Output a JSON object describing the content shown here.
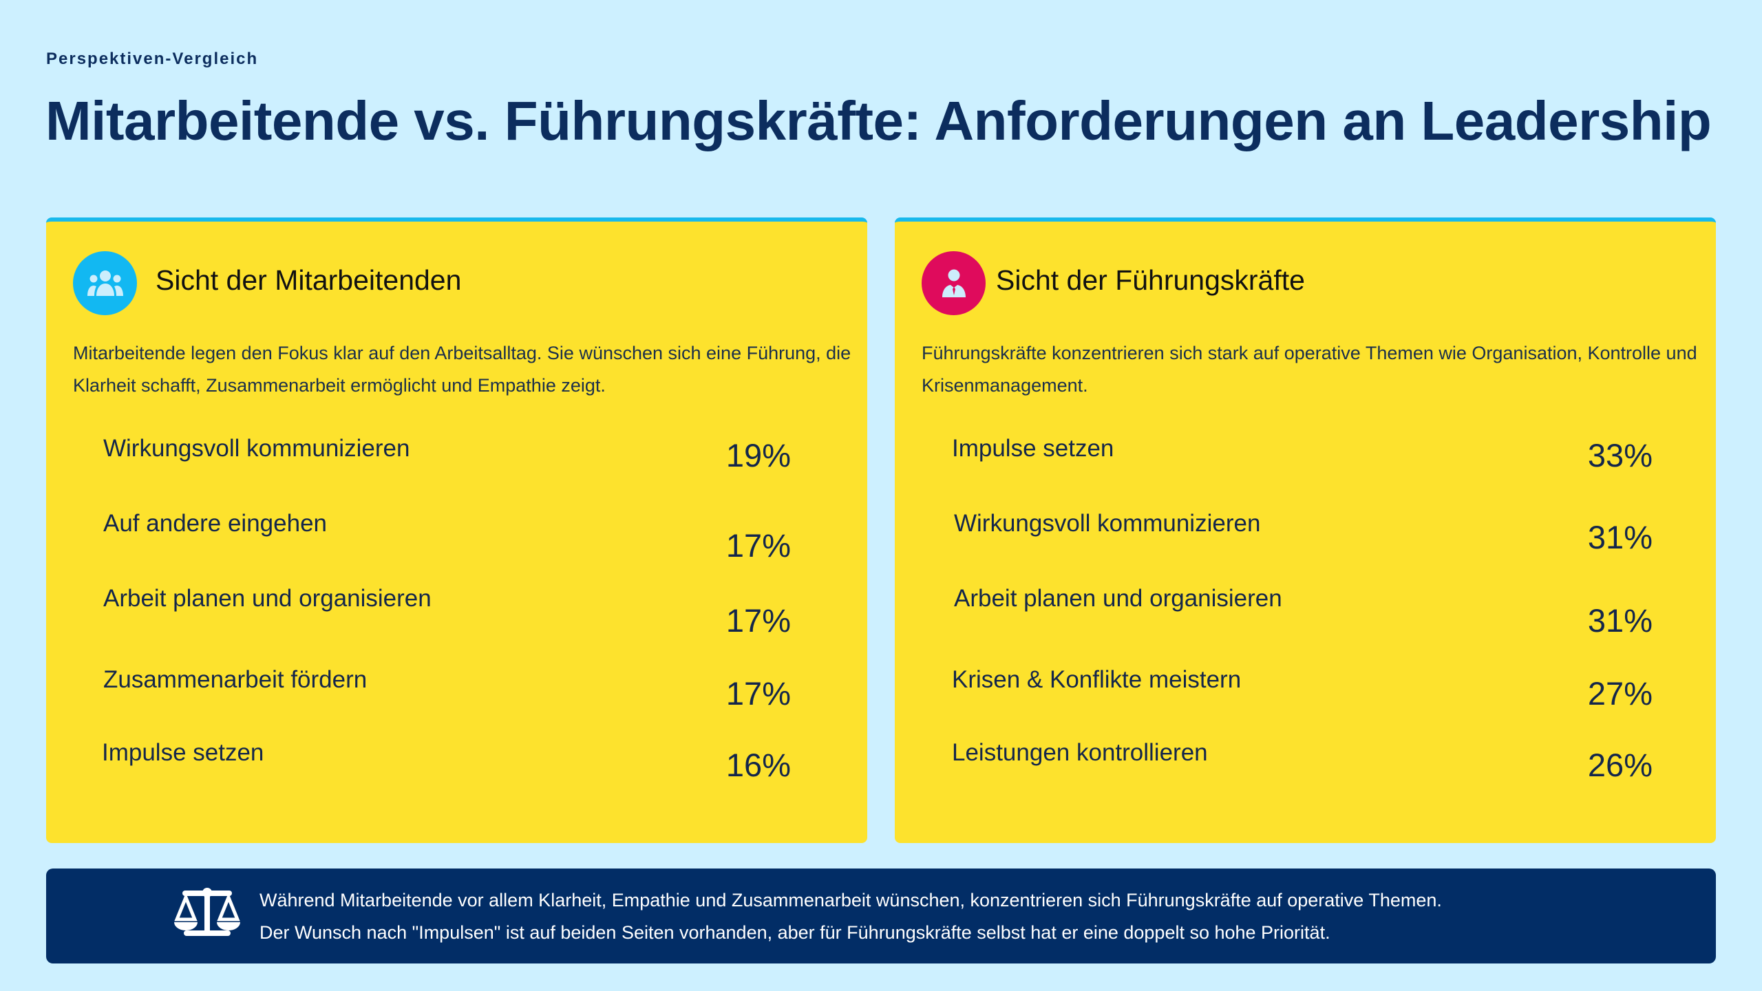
{
  "kicker": "Perspektiven-Vergleich",
  "title": "Mitarbeitende vs. Führungskräfte: Anforderungen an Leadership",
  "colors": {
    "background": "#cdf0ff",
    "card": "#fde22d",
    "card_border": "#19b9ec",
    "employee_icon": "#12b8f2",
    "leader_icon": "#df0b5c",
    "footer": "#022d66",
    "text": "#0c2d5e"
  },
  "employees": {
    "icon": "group-icon",
    "heading": "Sicht der Mitarbeitenden",
    "description": "Mitarbeitende legen den Fokus klar auf den Arbeitsalltag. Sie wünschen sich eine Führung, die Klarheit schafft, Zusammenarbeit ermöglicht und Empathie zeigt.",
    "items": [
      {
        "label": "Wirkungsvoll kommunizieren",
        "value": "19%"
      },
      {
        "label": "Auf andere eingehen",
        "value": "17%"
      },
      {
        "label": "Arbeit planen und organisieren",
        "value": "17%"
      },
      {
        "label": "Zusammenarbeit fördern",
        "value": "17%"
      },
      {
        "label": "Impulse setzen",
        "value": "16%"
      }
    ]
  },
  "leaders": {
    "icon": "businessman-icon",
    "heading": "Sicht der Führungskräfte",
    "description": "Führungskräfte konzentrieren sich stark auf operative Themen wie Organisation, Kontrolle und Krisenmanagement.",
    "items": [
      {
        "label": "Impulse setzen",
        "value": "33%"
      },
      {
        "label": "Wirkungsvoll kommunizieren",
        "value": "31%"
      },
      {
        "label": "Arbeit planen und organisieren",
        "value": "31%"
      },
      {
        "label": "Krisen & Konflikte meistern",
        "value": "27%"
      },
      {
        "label": "Leistungen kontrollieren",
        "value": "26%"
      }
    ]
  },
  "footer": {
    "icon": "scales-icon",
    "line1": "Während Mitarbeitende vor allem Klarheit, Empathie und Zusammenarbeit wünschen, konzentrieren sich Führungskräfte auf operative Themen.",
    "line2": "Der Wunsch nach \"Impulsen\" ist auf beiden Seiten vorhanden, aber für Führungskräfte selbst hat er eine doppelt so hohe Priorität."
  }
}
